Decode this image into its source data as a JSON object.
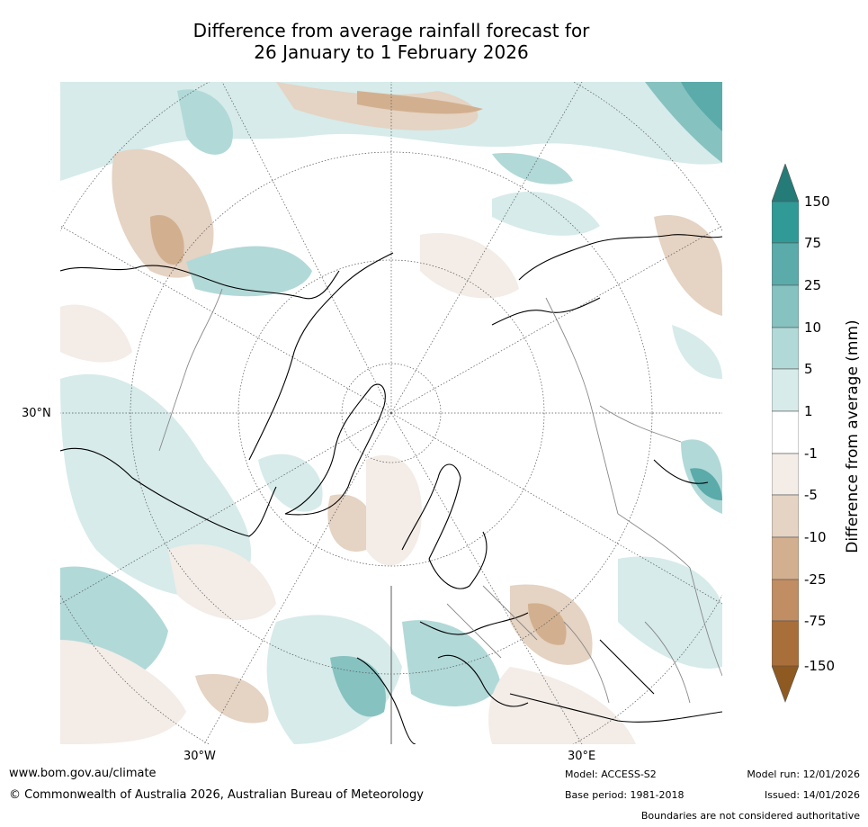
{
  "title_line1": "Difference from average rainfall forecast for",
  "title_line2": "26 January to 1 February 2026",
  "lat_labels": [
    "30°N"
  ],
  "lon_labels": [
    "30°W",
    "30°E"
  ],
  "colorbar": {
    "title": "Difference from average (mm)",
    "tick_labels": [
      "150",
      "75",
      "25",
      "10",
      "5",
      "1",
      "-1",
      "-5",
      "-10",
      "-25",
      "-75",
      "-150"
    ],
    "colors": [
      "#257b78",
      "#2f9a96",
      "#5aabaa",
      "#86c2c0",
      "#b1d9d8",
      "#d6ebea",
      "#ffffff",
      "#f3ece7",
      "#e5d3c3",
      "#d2b08f",
      "#c18d62",
      "#a96f3a",
      "#8e5a22"
    ]
  },
  "footer": {
    "website": "www.bom.gov.au/climate",
    "copyright": "© Commonwealth of Australia 2026, Australian Bureau of Meteorology",
    "model": "Model: ACCESS-S2",
    "base_period": "Base period: 1981-2018",
    "model_run": "Model run: 12/01/2026",
    "issued": "Issued: 14/01/2026",
    "boundaries": "Boundaries are not considered authoritative"
  }
}
